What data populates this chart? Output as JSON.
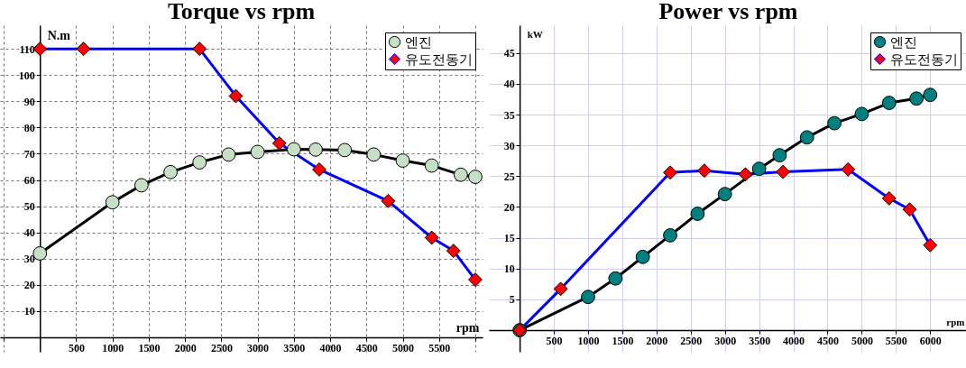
{
  "chart_data": [
    {
      "type": "line",
      "title": "Torque vs rpm",
      "xlabel": "rpm",
      "ylabel": "N.m",
      "xlim": [
        -550,
        6100
      ],
      "ylim": [
        -5.5,
        119
      ],
      "xticks": [
        {
          "value": -500,
          "label": null
        },
        {
          "value": 0,
          "label": null
        },
        500,
        1000,
        1500,
        2000,
        2500,
        3000,
        3500,
        4000,
        4500,
        5000,
        5500,
        {
          "value": 6000,
          "label": null
        }
      ],
      "yticks": [
        {
          "value": 0,
          "label": null
        },
        10,
        20,
        30,
        40,
        50,
        60,
        70,
        80,
        90,
        100,
        110
      ],
      "grid": true,
      "legend": "top right",
      "line_style": "solid",
      "series": [
        {
          "name": "엔진",
          "color": "#000000",
          "marker": "circle",
          "colors": [
            "#c6e0c6",
            "#c6e0c6",
            "#c6e0c6",
            "#c6e0c6",
            "#c6e0c6",
            "#c6e0c6",
            "#c6e0c6",
            "#c6e0c6",
            "#c6e0c6",
            "#c6e0c6",
            "#c6e0c6",
            "#c6e0c6",
            "#c6e0c6",
            "#c6e0c6",
            "#c6e0c6"
          ],
          "x": [
            0,
            1000,
            1400,
            1800,
            2200,
            2600,
            3000,
            3500,
            3800,
            4200,
            4600,
            5000,
            5400,
            5800,
            6000
          ],
          "values": [
            32,
            51.5,
            58,
            63,
            66.7,
            69.7,
            70.7,
            71.7,
            71.6,
            71.4,
            69.7,
            67.4,
            65.5,
            62,
            61.2
          ]
        },
        {
          "name": "유도전동기",
          "color": "#0000ff",
          "marker": "diamond",
          "colors": [
            "#ff0000",
            "#ff0000",
            "#ff0000",
            "#ff0000",
            "#ff0000",
            "#ff0000",
            "#ff0000",
            "#ff0000",
            "#ff0000",
            "#ff0000"
          ],
          "x": [
            0,
            600,
            2200,
            2700,
            3300,
            3850,
            4800,
            5400,
            5700,
            6000
          ],
          "values": [
            110,
            110,
            110,
            92,
            74,
            64,
            52,
            38,
            33,
            22
          ]
        }
      ]
    },
    {
      "type": "line",
      "title": "Power vs rpm",
      "xlabel": "rpm",
      "ylabel": "kW",
      "xlim": [
        -450,
        6550
      ],
      "ylim": [
        -3.5,
        49.5
      ],
      "xticks": [
        {
          "value": 0,
          "label": null
        },
        500,
        1000,
        1500,
        2000,
        2500,
        3000,
        3500,
        4000,
        4500,
        5000,
        5500,
        6000
      ],
      "yticks": [
        {
          "value": 0,
          "label": null
        },
        5,
        10,
        15,
        20,
        25,
        30,
        35,
        40,
        45
      ],
      "grid": true,
      "legend": "top right",
      "line_style": "solid",
      "series": [
        {
          "name": "엔진",
          "color": "#000000",
          "marker": "circle",
          "colors": [
            "#007f7f",
            "#007f7f",
            "#007f7f",
            "#007f7f",
            "#007f7f",
            "#007f7f",
            "#007f7f",
            "#007f7f",
            "#007f7f",
            "#007f7f",
            "#007f7f",
            "#007f7f",
            "#007f7f",
            "#007f7f",
            "#007f7f"
          ],
          "x": [
            0,
            1000,
            1400,
            1800,
            2200,
            2600,
            3000,
            3500,
            3800,
            4200,
            4600,
            5000,
            5400,
            5800,
            6000
          ],
          "values": [
            0,
            5.4,
            8.4,
            11.9,
            15.4,
            18.9,
            22.1,
            26.2,
            28.4,
            31.3,
            33.6,
            35.1,
            36.9,
            37.6,
            38.2
          ]
        },
        {
          "name": "유도전동기",
          "color": "#0000ff",
          "marker": "diamond",
          "colors": [
            "#ff0000",
            "#ff0000",
            "#ff0000",
            "#ff0000",
            "#ff0000",
            "#ff0000",
            "#ff0000",
            "#ff0000",
            "#ff0000",
            "#ff0000"
          ],
          "x": [
            0,
            600,
            2200,
            2700,
            3300,
            3850,
            4800,
            5400,
            5700,
            6000
          ],
          "values": [
            0,
            6.7,
            25.6,
            25.9,
            25.3,
            25.7,
            26.1,
            21.4,
            19.6,
            13.8
          ]
        }
      ]
    }
  ]
}
